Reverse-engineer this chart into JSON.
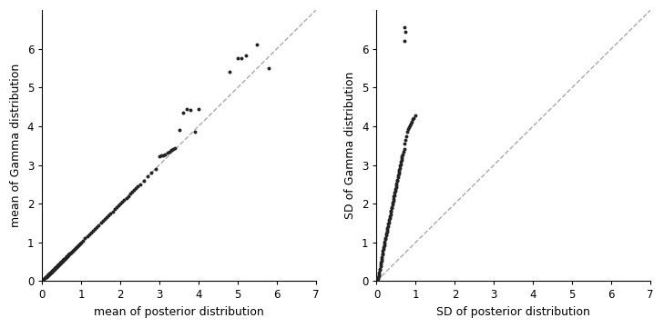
{
  "left_x": [
    0.05,
    0.07,
    0.09,
    0.1,
    0.11,
    0.13,
    0.14,
    0.15,
    0.16,
    0.17,
    0.18,
    0.19,
    0.2,
    0.21,
    0.22,
    0.23,
    0.24,
    0.25,
    0.26,
    0.27,
    0.28,
    0.29,
    0.3,
    0.31,
    0.32,
    0.33,
    0.34,
    0.35,
    0.36,
    0.37,
    0.38,
    0.39,
    0.4,
    0.41,
    0.42,
    0.43,
    0.44,
    0.45,
    0.46,
    0.47,
    0.48,
    0.49,
    0.5,
    0.51,
    0.52,
    0.53,
    0.54,
    0.55,
    0.56,
    0.57,
    0.58,
    0.59,
    0.6,
    0.62,
    0.63,
    0.65,
    0.66,
    0.68,
    0.7,
    0.72,
    0.74,
    0.76,
    0.78,
    0.8,
    0.83,
    0.85,
    0.88,
    0.9,
    0.93,
    0.95,
    0.98,
    1.0,
    1.05,
    1.1,
    1.15,
    1.2,
    1.25,
    1.3,
    1.35,
    1.4,
    1.45,
    1.5,
    1.55,
    1.6,
    1.65,
    1.7,
    1.75,
    1.8,
    1.85,
    1.9,
    1.95,
    2.0,
    2.05,
    2.1,
    2.15,
    2.2,
    2.25,
    2.3,
    2.35,
    2.4,
    2.45,
    2.5,
    2.6,
    2.7,
    2.8,
    2.9,
    3.0,
    3.05,
    3.1,
    3.15,
    3.2,
    3.25,
    3.3,
    3.35,
    3.4,
    3.5,
    3.6,
    3.7,
    3.8,
    3.9,
    4.0,
    4.8,
    5.0,
    5.1,
    5.2,
    5.5,
    5.8
  ],
  "left_y": [
    0.05,
    0.07,
    0.09,
    0.1,
    0.11,
    0.13,
    0.14,
    0.15,
    0.16,
    0.17,
    0.18,
    0.19,
    0.2,
    0.21,
    0.22,
    0.23,
    0.24,
    0.25,
    0.26,
    0.27,
    0.28,
    0.29,
    0.3,
    0.31,
    0.32,
    0.33,
    0.34,
    0.35,
    0.36,
    0.37,
    0.38,
    0.39,
    0.4,
    0.41,
    0.42,
    0.43,
    0.44,
    0.45,
    0.46,
    0.47,
    0.48,
    0.49,
    0.5,
    0.51,
    0.52,
    0.53,
    0.54,
    0.55,
    0.56,
    0.57,
    0.58,
    0.59,
    0.6,
    0.62,
    0.63,
    0.65,
    0.66,
    0.68,
    0.7,
    0.72,
    0.74,
    0.76,
    0.78,
    0.8,
    0.83,
    0.85,
    0.88,
    0.9,
    0.93,
    0.95,
    0.98,
    1.0,
    1.05,
    1.1,
    1.15,
    1.2,
    1.25,
    1.3,
    1.35,
    1.4,
    1.45,
    1.5,
    1.55,
    1.6,
    1.65,
    1.7,
    1.75,
    1.8,
    1.85,
    1.9,
    1.95,
    2.0,
    2.05,
    2.1,
    2.15,
    2.2,
    2.25,
    2.3,
    2.35,
    2.4,
    2.45,
    2.5,
    2.6,
    2.7,
    2.8,
    2.9,
    3.22,
    3.24,
    3.25,
    3.27,
    3.32,
    3.35,
    3.38,
    3.4,
    3.44,
    3.91,
    4.35,
    4.45,
    4.42,
    3.85,
    4.44,
    5.4,
    5.75,
    5.77,
    5.82,
    6.1,
    5.5
  ],
  "right_x": [
    0.03,
    0.04,
    0.05,
    0.06,
    0.07,
    0.08,
    0.09,
    0.1,
    0.1,
    0.11,
    0.12,
    0.13,
    0.14,
    0.15,
    0.15,
    0.16,
    0.17,
    0.18,
    0.19,
    0.2,
    0.21,
    0.22,
    0.23,
    0.24,
    0.25,
    0.26,
    0.27,
    0.28,
    0.29,
    0.3,
    0.31,
    0.32,
    0.33,
    0.34,
    0.35,
    0.36,
    0.37,
    0.38,
    0.39,
    0.4,
    0.41,
    0.42,
    0.43,
    0.44,
    0.45,
    0.46,
    0.47,
    0.48,
    0.49,
    0.5,
    0.51,
    0.52,
    0.53,
    0.54,
    0.55,
    0.56,
    0.57,
    0.58,
    0.59,
    0.6,
    0.61,
    0.62,
    0.63,
    0.64,
    0.65,
    0.66,
    0.68,
    0.7,
    0.72,
    0.74,
    0.76,
    0.78,
    0.8,
    0.83,
    0.85,
    0.88,
    0.9,
    0.93,
    0.95,
    0.98,
    0.7,
    0.72,
    0.74
  ],
  "right_y": [
    0.05,
    0.1,
    0.12,
    0.18,
    0.22,
    0.28,
    0.32,
    0.38,
    0.42,
    0.48,
    0.52,
    0.58,
    0.62,
    0.68,
    0.72,
    0.78,
    0.82,
    0.88,
    0.92,
    0.98,
    1.02,
    1.08,
    1.12,
    1.18,
    1.22,
    1.28,
    1.32,
    1.38,
    1.42,
    1.48,
    1.52,
    1.58,
    1.62,
    1.68,
    1.72,
    1.78,
    1.82,
    1.88,
    1.92,
    1.98,
    2.02,
    2.08,
    2.12,
    2.18,
    2.22,
    2.28,
    2.32,
    2.38,
    2.42,
    2.48,
    2.52,
    2.58,
    2.62,
    2.68,
    2.72,
    2.78,
    2.82,
    2.88,
    2.92,
    2.98,
    3.02,
    3.08,
    3.12,
    3.18,
    3.22,
    3.28,
    3.35,
    3.42,
    3.55,
    3.65,
    3.75,
    3.85,
    3.92,
    3.98,
    4.02,
    4.08,
    4.12,
    4.18,
    4.22,
    4.28,
    6.2,
    6.55,
    6.45
  ],
  "dot_color": "#222222",
  "dot_size": 8,
  "dashed_color": "#aaaaaa",
  "xlim": [
    0,
    7
  ],
  "ylim": [
    0,
    7
  ],
  "xticks": [
    0,
    1,
    2,
    3,
    4,
    5,
    6,
    7
  ],
  "yticks": [
    0,
    1,
    2,
    3,
    4,
    5,
    6
  ],
  "left_xlabel": "mean of posterior distribution",
  "left_ylabel": "mean of Gamma distribution",
  "right_xlabel": "SD of posterior distribution",
  "right_ylabel": "SD of Gamma distribution",
  "label_fontsize": 9,
  "tick_fontsize": 8.5,
  "bg_color": "#ffffff"
}
